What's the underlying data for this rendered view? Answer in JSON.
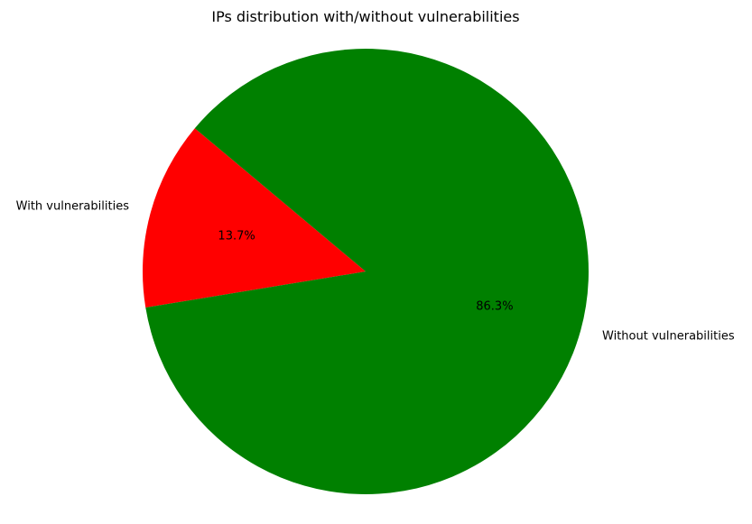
{
  "chart_data": {
    "type": "pie",
    "title": "IPs distribution with/without vulnerabilities",
    "start_angle_deg": 140,
    "direction": "counterclockwise",
    "slices": [
      {
        "label": "With vulnerabilities",
        "value": 13.7,
        "pct_label": "13.7%",
        "color": "#ff0000"
      },
      {
        "label": "Without vulnerabilities",
        "value": 86.3,
        "pct_label": "86.3%",
        "color": "#008000"
      }
    ]
  }
}
